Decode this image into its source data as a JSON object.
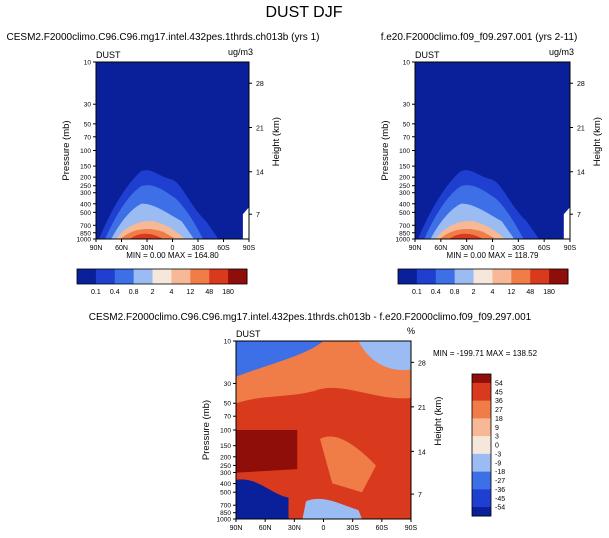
{
  "page_title": "DUST DJF",
  "colors": {
    "deep_blue": "#0a1f9a",
    "blue": "#1e3fd0",
    "mid_blue": "#3d6fe6",
    "light_blue": "#9bbcf2",
    "pale": "#f5e7dc",
    "peach": "#f6b896",
    "orange": "#f07c48",
    "red": "#d9391d",
    "dark_red": "#8f0e0a"
  },
  "chart_data": [
    {
      "type": "heatmap",
      "title": "CESM2.F2000climo.C96.C96.mg17.intel.432pes.1thrds.ch013b (yrs 1)",
      "left_string": "DUST",
      "units": "ug/m3",
      "xlabel": "",
      "ylabel": "Pressure (mb)",
      "ylabel_right": "Height (km)",
      "x_ticks": [
        "90N",
        "60N",
        "30N",
        "0",
        "30S",
        "60S",
        "90S"
      ],
      "y_ticks": [
        "10",
        "30",
        "50",
        "70",
        "100",
        "150",
        "200",
        "250",
        "300",
        "400",
        "500",
        "700",
        "850",
        "1000"
      ],
      "height_ticks": [
        "28",
        "21",
        "14",
        "7"
      ],
      "ylim": [
        1000,
        10
      ],
      "min_max_text": "MIN =   0.00  MAX = 164.80",
      "min": 0.0,
      "max": 164.8,
      "colorbar_levels": [
        "0.1",
        "0.4",
        "0.8",
        "2",
        "4",
        "12",
        "48",
        "180"
      ]
    },
    {
      "type": "heatmap",
      "title": "f.e20.F2000climo.f09_f09.297.001 (yrs 2-11)",
      "left_string": "DUST",
      "units": "ug/m3",
      "xlabel": "",
      "ylabel": "Pressure (mb)",
      "ylabel_right": "Height (km)",
      "x_ticks": [
        "90N",
        "60N",
        "30N",
        "0",
        "30S",
        "60S",
        "90S"
      ],
      "y_ticks": [
        "10",
        "30",
        "50",
        "70",
        "100",
        "150",
        "200",
        "250",
        "300",
        "400",
        "500",
        "700",
        "850",
        "1000"
      ],
      "height_ticks": [
        "28",
        "21",
        "14",
        "7"
      ],
      "ylim": [
        1000,
        10
      ],
      "min_max_text": "MIN =   0.00  MAX = 118.79",
      "min": 0.0,
      "max": 118.79,
      "colorbar_levels": [
        "0.1",
        "0.4",
        "0.8",
        "2",
        "4",
        "12",
        "48",
        "180"
      ]
    },
    {
      "type": "heatmap",
      "title": "CESM2.F2000climo.C96.C96.mg17.intel.432pes.1thrds.ch013b - f.e20.F2000climo.f09_f09.297.001",
      "left_string": "DUST",
      "units": "%",
      "xlabel": "",
      "ylabel": "Pressure (mb)",
      "ylabel_right": "Height (km)",
      "x_ticks": [
        "90N",
        "60N",
        "30N",
        "0",
        "30S",
        "60S",
        "90S"
      ],
      "y_ticks": [
        "10",
        "30",
        "50",
        "70",
        "100",
        "150",
        "200",
        "250",
        "300",
        "400",
        "500",
        "700",
        "850",
        "1000"
      ],
      "height_ticks": [
        "28",
        "21",
        "14",
        "7"
      ],
      "ylim": [
        1000,
        10
      ],
      "min_max_text": "MIN = -199.71  MAX = 138.52",
      "min": -199.71,
      "max": 138.52,
      "colorbar_levels": [
        "54",
        "45",
        "36",
        "27",
        "18",
        "9",
        "3",
        "0",
        "-3",
        "-9",
        "-18",
        "-27",
        "-36",
        "-45",
        "-54"
      ]
    }
  ]
}
